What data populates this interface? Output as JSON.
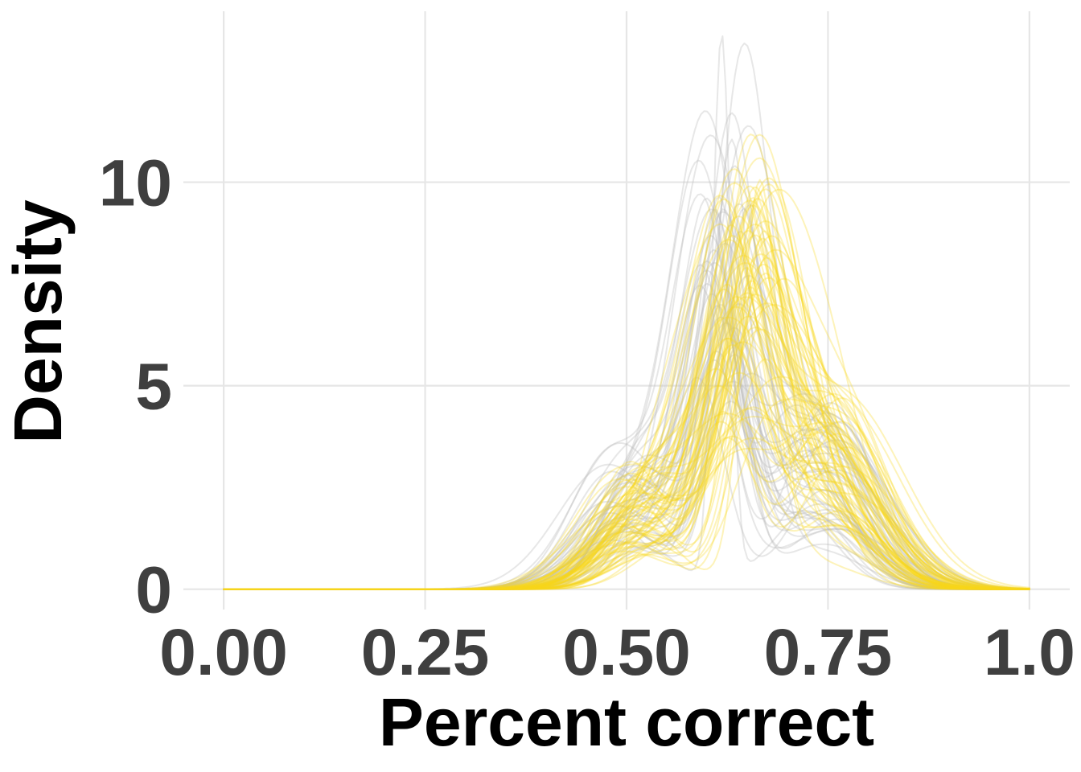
{
  "chart_data": {
    "type": "line",
    "title": "",
    "xlabel": "Percent correct",
    "ylabel": "Density",
    "xlim": [
      -0.05,
      1.05
    ],
    "ylim": [
      -0.5,
      14.2
    ],
    "x_ticks": [
      0,
      0.25,
      0.5,
      0.75,
      1.0
    ],
    "x_tick_labels": [
      "0.00",
      "0.25",
      "0.50",
      "0.75",
      "1.0"
    ],
    "y_ticks": [
      0,
      5,
      10
    ],
    "y_tick_labels": [
      "0",
      "5",
      "10"
    ],
    "grid": true,
    "legend": "none",
    "colors": {
      "groupA": "#bdbdbd",
      "groupB": "#f9d81a",
      "grid": "#e6e6e6",
      "tick_text": "#3f3f3f",
      "title_text": "#000000"
    },
    "series_groups": [
      {
        "color_key": "groupA",
        "opacity": 0.36,
        "count": 45,
        "x_range": [
          0,
          1
        ],
        "components": [
          {
            "mean": 0.505,
            "sd": 0.048,
            "peak": 2.4
          },
          {
            "mean": 0.62,
            "sd": 0.034,
            "peak": 8.2
          },
          {
            "mean": 0.735,
            "sd": 0.055,
            "peak": 3.4
          }
        ],
        "highlight_peaks": [
          {
            "mean": 0.618,
            "sd": 0.011,
            "peak": 13.4
          },
          {
            "mean": 0.63,
            "sd": 0.022,
            "peak": 10.5
          },
          {
            "mean": 0.615,
            "sd": 0.028,
            "peak": 9.4
          },
          {
            "mean": 0.645,
            "sd": 0.03,
            "peak": 9.1
          },
          {
            "mean": 0.605,
            "sd": 0.035,
            "peak": 8.5
          }
        ]
      },
      {
        "color_key": "groupB",
        "opacity": 0.3,
        "count": 75,
        "x_range": [
          0,
          1
        ],
        "components": [
          {
            "mean": 0.52,
            "sd": 0.05,
            "peak": 2.1
          },
          {
            "mean": 0.645,
            "sd": 0.042,
            "peak": 6.5
          },
          {
            "mean": 0.745,
            "sd": 0.058,
            "peak": 3.2
          }
        ],
        "highlight_peaks": [
          {
            "mean": 0.665,
            "sd": 0.022,
            "peak": 9.6
          },
          {
            "mean": 0.655,
            "sd": 0.028,
            "peak": 8.9
          },
          {
            "mean": 0.67,
            "sd": 0.03,
            "peak": 8.2
          },
          {
            "mean": 0.648,
            "sd": 0.034,
            "peak": 7.6
          }
        ]
      }
    ]
  }
}
